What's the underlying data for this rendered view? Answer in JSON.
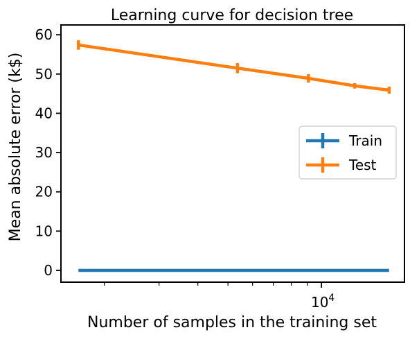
{
  "chart_data": {
    "type": "line",
    "title": "Learning curve for decision tree",
    "xlabel": "Number of samples in the training set",
    "ylabel": "Mean absolute error (k$)",
    "xscale": "log",
    "xlim": [
      1450,
      18500
    ],
    "ylim": [
      -3,
      62.5
    ],
    "yticks": [
      0,
      10,
      20,
      30,
      40,
      50,
      60
    ],
    "xticks_major": [
      {
        "value": 10000,
        "base": "10",
        "exp": "4"
      }
    ],
    "xticks_minor": [
      2000,
      3000,
      4000,
      5000,
      6000,
      7000,
      8000,
      9000
    ],
    "grid": false,
    "legend_position": "center-right",
    "series": [
      {
        "name": "Train",
        "color": "#1f77b4",
        "x": [
          1651,
          5366,
          9081,
          12796,
          16511
        ],
        "y": [
          0,
          0,
          0,
          0,
          0
        ],
        "err": [
          0,
          0,
          0,
          0,
          0
        ]
      },
      {
        "name": "Test",
        "color": "#ff7f0e",
        "x": [
          1651,
          5366,
          9081,
          12796,
          16511
        ],
        "y": [
          57.4,
          51.5,
          48.9,
          47.0,
          45.9
        ],
        "err": [
          1.2,
          1.3,
          1.1,
          0.7,
          0.9
        ]
      }
    ]
  }
}
